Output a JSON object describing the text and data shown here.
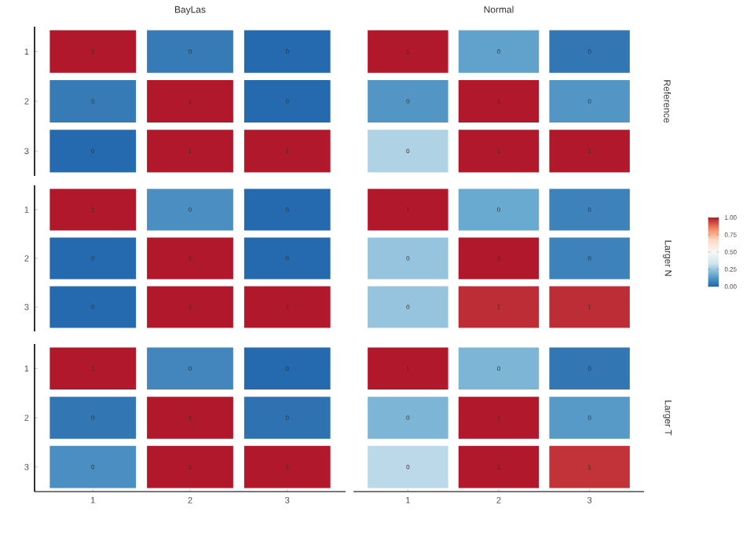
{
  "chart_data": [
    {
      "type": "heatmap",
      "title": "BayLas",
      "categories": [
        "1",
        "2",
        "3"
      ],
      "y_categories": [
        "1",
        "2",
        "3"
      ],
      "tick_labels": "y",
      "cells": [
        [
          1,
          0.05,
          0.01
        ],
        [
          0.05,
          1,
          0.01
        ],
        [
          0.01,
          1,
          1
        ]
      ],
      "cell_labels": [
        [
          "1",
          "0",
          "0"
        ],
        [
          "0",
          "1",
          "0"
        ],
        [
          "0",
          "1",
          "1"
        ]
      ]
    },
    {
      "type": "heatmap",
      "title": "Normal",
      "y2label": "Reference",
      "categories": [
        "1",
        "2",
        "3"
      ],
      "y_categories": [
        "1",
        "2",
        "3"
      ],
      "tick_labels": false,
      "cells": [
        [
          1,
          0.15,
          0.04
        ],
        [
          0.12,
          1,
          0.12
        ],
        [
          0.28,
          1,
          1
        ]
      ],
      "cell_labels": [
        [
          "1",
          "0",
          "0"
        ],
        [
          "0",
          "1",
          "0"
        ],
        [
          "0",
          "1",
          "1"
        ]
      ]
    },
    {
      "type": "heatmap",
      "categories": [
        "1",
        "2",
        "3"
      ],
      "y_categories": [
        "1",
        "2",
        "3"
      ],
      "tick_labels": "y",
      "cells": [
        [
          1,
          0.1,
          0.01
        ],
        [
          0.01,
          1,
          0.01
        ],
        [
          0.01,
          1,
          1
        ]
      ],
      "cell_labels": [
        [
          "1",
          "0",
          "0"
        ],
        [
          "0",
          "1",
          "0"
        ],
        [
          "0",
          "1",
          "1"
        ]
      ]
    },
    {
      "type": "heatmap",
      "y2label": "Larger N",
      "categories": [
        "1",
        "2",
        "3"
      ],
      "y_categories": [
        "1",
        "2",
        "3"
      ],
      "clim": [
        0,
        1
      ],
      "tick_labels": false,
      "cticks": [
        {
          "value": 0,
          "label": "0.00"
        },
        {
          "value": 0.25,
          "label": "0.25"
        },
        {
          "value": 0.5,
          "label": "0.50"
        },
        {
          "value": 0.75,
          "label": "0.75"
        },
        {
          "value": 1,
          "label": "1.00"
        }
      ],
      "cells": [
        [
          1,
          0.17,
          0.07
        ],
        [
          0.24,
          1,
          0.07
        ],
        [
          0.24,
          0.97,
          0.97
        ]
      ],
      "cell_labels": [
        [
          "1",
          "0",
          "0"
        ],
        [
          "0",
          "1",
          "0"
        ],
        [
          "0",
          "1",
          "1"
        ]
      ]
    },
    {
      "type": "heatmap",
      "categories": [
        "1",
        "2",
        "3"
      ],
      "y_categories": [
        "1",
        "2",
        "3"
      ],
      "cells": [
        [
          1,
          0.08,
          0.01
        ],
        [
          0.04,
          1,
          0.03
        ],
        [
          0.1,
          1,
          1
        ]
      ],
      "cell_labels": [
        [
          "1",
          "0",
          "0"
        ],
        [
          "0",
          "1",
          "0"
        ],
        [
          "0",
          "1",
          "1"
        ]
      ]
    },
    {
      "type": "heatmap",
      "y2label": "Larger T",
      "categories": [
        "1",
        "2",
        "3"
      ],
      "y_categories": [
        "1",
        "2",
        "3"
      ],
      "tick_labels": "x",
      "cells": [
        [
          1,
          0.2,
          0.04
        ],
        [
          0.2,
          1,
          0.13
        ],
        [
          0.3,
          1,
          0.96
        ]
      ],
      "cell_labels": [
        [
          "1",
          "0",
          "0"
        ],
        [
          "0",
          "1",
          "0"
        ],
        [
          "0",
          "1",
          "1"
        ]
      ]
    }
  ]
}
